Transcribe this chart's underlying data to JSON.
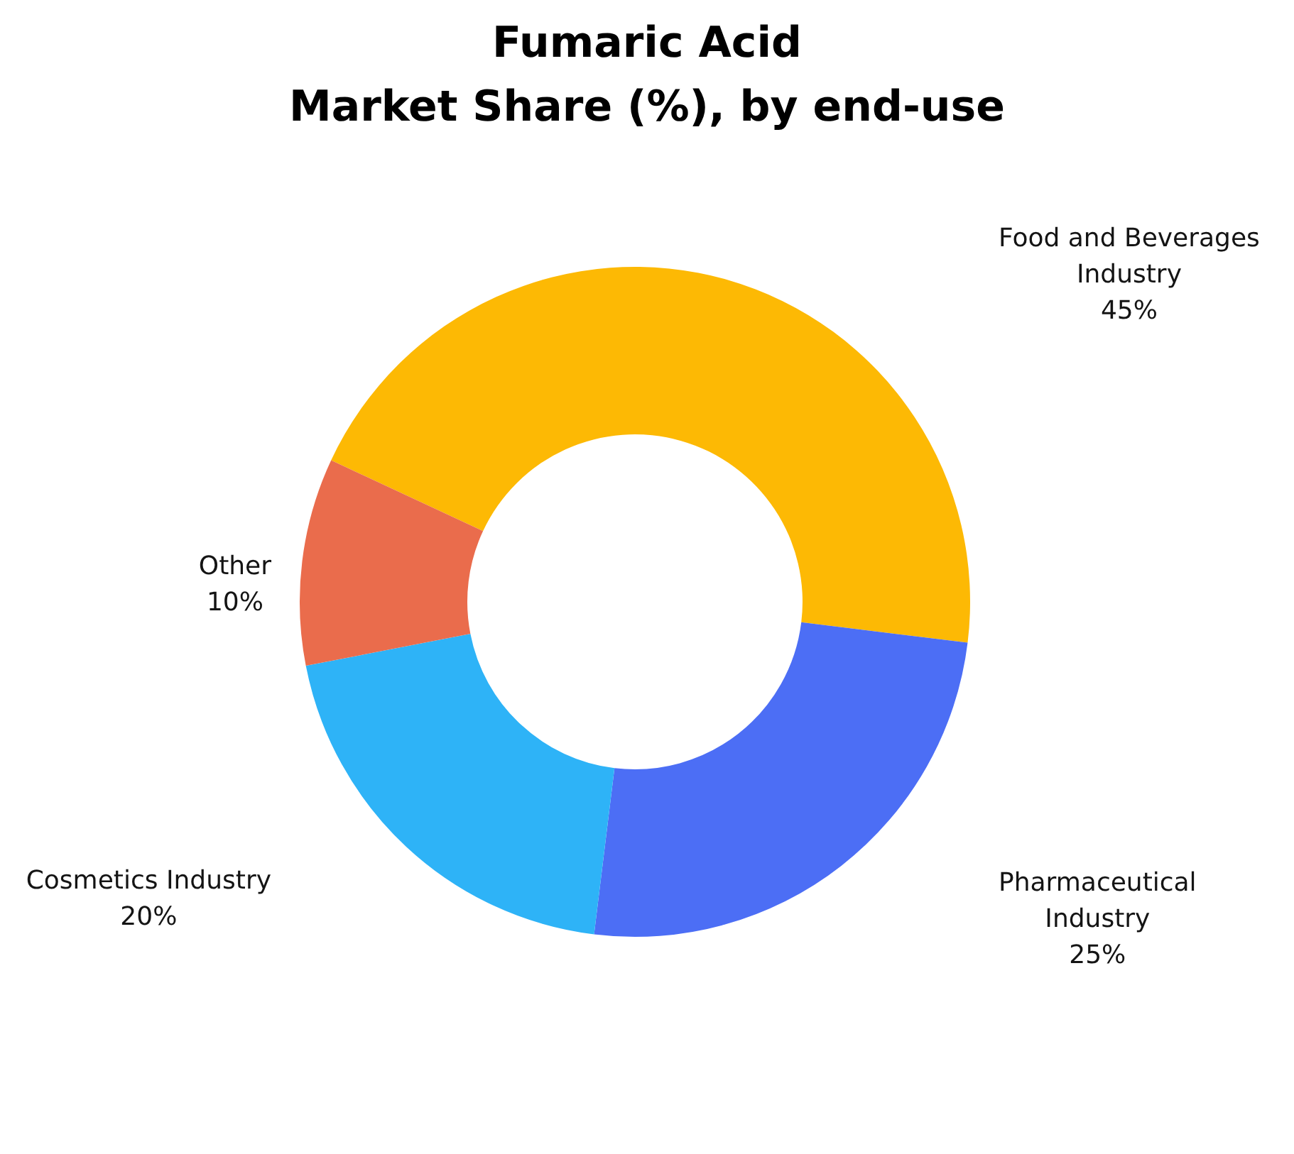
{
  "chart_data": {
    "type": "donut",
    "title": "Fumaric Acid\nMarket Share (%), by end-use",
    "categories": [
      "Food and Beverages Industry",
      "Pharmaceutical Industry",
      "Cosmetics Industry",
      "Other"
    ],
    "values": [
      45,
      25,
      20,
      10
    ],
    "colors": [
      "#fdb904",
      "#4c6ef5",
      "#2eb3f7",
      "#ea6c4c"
    ],
    "value_labels": [
      "45%",
      "25%",
      "20%",
      "10%"
    ]
  }
}
